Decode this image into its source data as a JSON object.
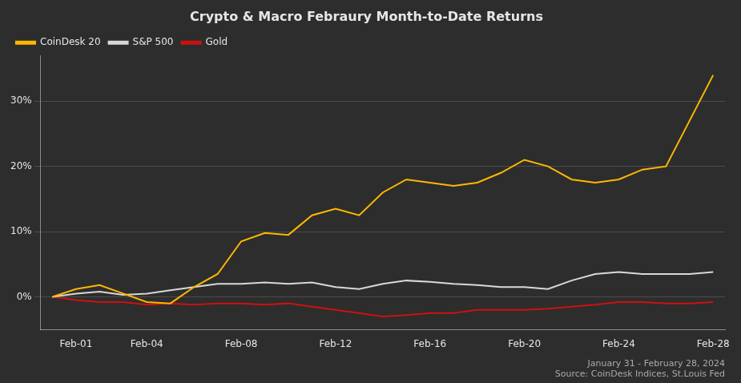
{
  "chart_data": {
    "type": "line",
    "title": "Crypto & Macro Febraury Month-to-Date Returns",
    "annotations": [
      "January 31 - February 28, 2024",
      "Source: CoinDesk Indices, St.Louis Fed"
    ],
    "x": [
      0,
      1,
      2,
      3,
      4,
      5,
      6,
      7,
      8,
      9,
      10,
      11,
      12,
      13,
      14,
      15,
      16,
      17,
      18,
      19,
      20,
      21,
      22,
      23,
      24,
      25,
      26,
      27,
      28
    ],
    "series": [
      {
        "name": "CoinDesk 20",
        "color": "#FFB800",
        "values": [
          0.0,
          1.2,
          1.8,
          0.5,
          -0.8,
          -1.0,
          1.5,
          3.5,
          8.5,
          9.8,
          9.5,
          12.5,
          13.5,
          12.5,
          16.0,
          18.0,
          17.5,
          17.0,
          17.5,
          19.0,
          21.0,
          20.0,
          18.0,
          17.5,
          18.0,
          19.5,
          20.0,
          27.0,
          34.0
        ]
      },
      {
        "name": "S&P 500",
        "color": "#d8d8d8",
        "values": [
          0.0,
          0.5,
          0.8,
          0.3,
          0.5,
          1.0,
          1.5,
          2.0,
          2.0,
          2.2,
          2.0,
          2.2,
          1.5,
          1.2,
          2.0,
          2.5,
          2.3,
          2.0,
          1.8,
          1.5,
          1.5,
          1.2,
          2.5,
          3.5,
          3.8,
          3.5,
          3.5,
          3.5,
          3.8
        ]
      },
      {
        "name": "Gold",
        "color": "#cc1111",
        "values": [
          0.0,
          -0.5,
          -0.8,
          -0.8,
          -1.2,
          -1.0,
          -1.2,
          -1.0,
          -1.0,
          -1.2,
          -1.0,
          -1.5,
          -2.0,
          -2.5,
          -3.0,
          -2.8,
          -2.5,
          -2.5,
          -2.0,
          -2.0,
          -2.0,
          -1.8,
          -1.5,
          -1.2,
          -0.8,
          -0.8,
          -1.0,
          -1.0,
          -0.8
        ]
      }
    ],
    "xlim": [
      -0.5,
      28.5
    ],
    "xticks": [
      {
        "value": 1,
        "label": "Feb-01"
      },
      {
        "value": 4,
        "label": "Feb-04"
      },
      {
        "value": 8,
        "label": "Feb-08"
      },
      {
        "value": 12,
        "label": "Feb-12"
      },
      {
        "value": 16,
        "label": "Feb-16"
      },
      {
        "value": 20,
        "label": "Feb-20"
      },
      {
        "value": 24,
        "label": "Feb-24"
      },
      {
        "value": 28,
        "label": "Feb-28"
      }
    ],
    "ylim": [
      -5,
      37
    ],
    "yticks": [
      {
        "value": 0,
        "label": "0%"
      },
      {
        "value": 10,
        "label": "10%"
      },
      {
        "value": 20,
        "label": "20%"
      },
      {
        "value": 30,
        "label": "30%"
      }
    ],
    "grid": "y",
    "legend": "upper left"
  }
}
